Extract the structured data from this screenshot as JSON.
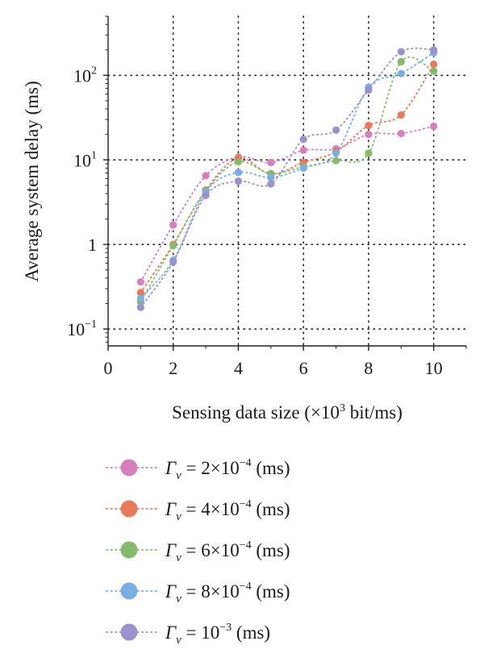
{
  "chart_data": {
    "type": "scatter",
    "xlabel": "Sensing data size (×10³ bit/ms)",
    "ylabel": "Average system delay (ms)",
    "xlim": [
      0,
      11
    ],
    "ylim_log10": [
      -1.2,
      2.7
    ],
    "yscale": "log",
    "grid": true,
    "legend_placement": "below",
    "x_ticks": [
      0,
      2,
      4,
      6,
      8,
      10
    ],
    "x_tick_labels": [
      "0",
      "2",
      "4",
      "6",
      "8",
      "10"
    ],
    "y_ticks": [
      0.1,
      1,
      10,
      100
    ],
    "y_tick_labels": [
      {
        "base": "10",
        "sup": "−1"
      },
      {
        "base": "1",
        "sup": ""
      },
      {
        "base": "10",
        "sup": "1"
      },
      {
        "base": "10",
        "sup": "2"
      }
    ],
    "x": [
      1,
      2,
      3,
      4,
      5,
      6,
      7,
      8,
      9,
      10
    ],
    "series": [
      {
        "name": "Γ",
        "sub": "v",
        "rest": " = 2×10",
        "exp": "−4",
        "unit": " (ms)",
        "color": "#d67fbf",
        "values": [
          0.36,
          1.7,
          6.5,
          10.8,
          9.3,
          13,
          13.5,
          20,
          20.5,
          25
        ]
      },
      {
        "name": "Γ",
        "sub": "v",
        "rest": " = 4×10",
        "exp": "−4",
        "unit": " (ms)",
        "color": "#e8795a",
        "values": [
          0.27,
          1.0,
          4.4,
          10.5,
          6.8,
          9.3,
          12.5,
          25.5,
          34,
          135
        ]
      },
      {
        "name": "Γ",
        "sub": "v",
        "rest": " = 6×10",
        "exp": "−4",
        "unit": " (ms)",
        "color": "#86b96e",
        "values": [
          0.21,
          0.97,
          4.3,
          9.5,
          6.9,
          8.3,
          9.8,
          12,
          145,
          112
        ]
      },
      {
        "name": "Γ",
        "sub": "v",
        "rest": " = 8×10",
        "exp": "−4",
        "unit": " (ms)",
        "color": "#79aee3",
        "values": [
          0.23,
          0.65,
          4.2,
          7.1,
          6.2,
          8.0,
          12,
          72,
          105,
          185
        ]
      },
      {
        "name": "Γ",
        "sub": "v",
        "rest": " = 10",
        "exp": "−3",
        "unit": " (ms)",
        "color": "#9a92cd",
        "values": [
          0.18,
          0.62,
          3.8,
          5.6,
          5.2,
          17.5,
          22.5,
          67,
          190,
          200
        ]
      }
    ]
  }
}
